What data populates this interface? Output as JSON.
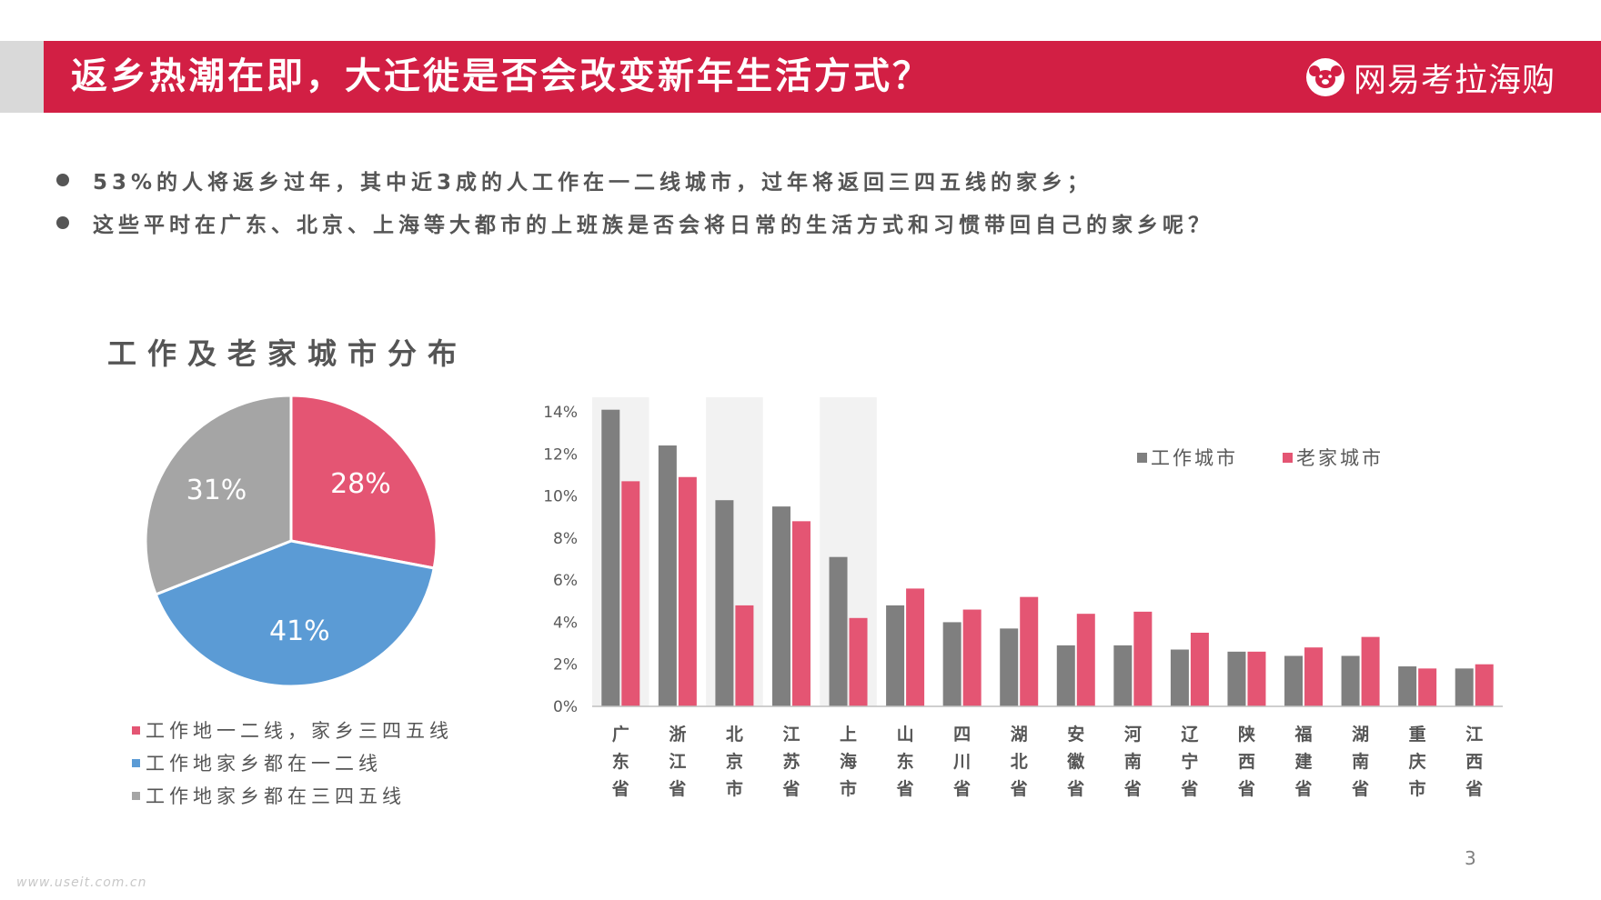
{
  "header": {
    "title": "返乡热潮在即，大迁徙是否会改变新年生活方式？",
    "logo_text": "网易考拉海购"
  },
  "bullets": [
    "53%的人将返乡过年，其中近3成的人工作在一二线城市，过年将返回三四五线的家乡；",
    "这些平时在广东、北京、上海等大都市的上班族是否会将日常的生活方式和习惯带回自己的家乡呢？"
  ],
  "pie_title": "工作及老家城市分布",
  "chart_data": [
    {
      "type": "pie",
      "slices": [
        {
          "label": "工作地一二线，家乡三四五线",
          "value": 28,
          "value_label": "28%",
          "color": "#e45573"
        },
        {
          "label": "工作地家乡都在一二线",
          "value": 41,
          "value_label": "41%",
          "color": "#5b9bd5"
        },
        {
          "label": "工作地家乡都在三四五线",
          "value": 31,
          "value_label": "31%",
          "color": "#a5a5a5"
        }
      ]
    },
    {
      "type": "bar",
      "categories": [
        "广东省",
        "浙江省",
        "北京市",
        "江苏省",
        "上海市",
        "山东省",
        "四川省",
        "湖北省",
        "安徽省",
        "河南省",
        "辽宁省",
        "陕西省",
        "福建省",
        "湖南省",
        "重庆市",
        "江西省"
      ],
      "highlighted_categories": [
        "广东省",
        "北京市",
        "上海市"
      ],
      "series": [
        {
          "name": "工作城市",
          "color": "#7f7f7f",
          "values": [
            14.1,
            12.4,
            9.8,
            9.5,
            7.1,
            4.8,
            4.0,
            3.7,
            2.9,
            2.9,
            2.7,
            2.6,
            2.4,
            2.4,
            1.9,
            1.8
          ]
        },
        {
          "name": "老家城市",
          "color": "#e45573",
          "values": [
            10.7,
            10.9,
            4.8,
            8.8,
            4.2,
            5.6,
            4.6,
            5.2,
            4.4,
            4.5,
            3.5,
            2.6,
            2.8,
            3.3,
            1.8,
            2.0
          ]
        }
      ],
      "yticks": [
        "0%",
        "2%",
        "4%",
        "6%",
        "8%",
        "10%",
        "12%",
        "14%"
      ],
      "ylim": [
        0,
        14
      ],
      "legend_position": "top-right",
      "grid": false
    }
  ],
  "page_number": "3",
  "watermark": "www.useit.com.cn"
}
